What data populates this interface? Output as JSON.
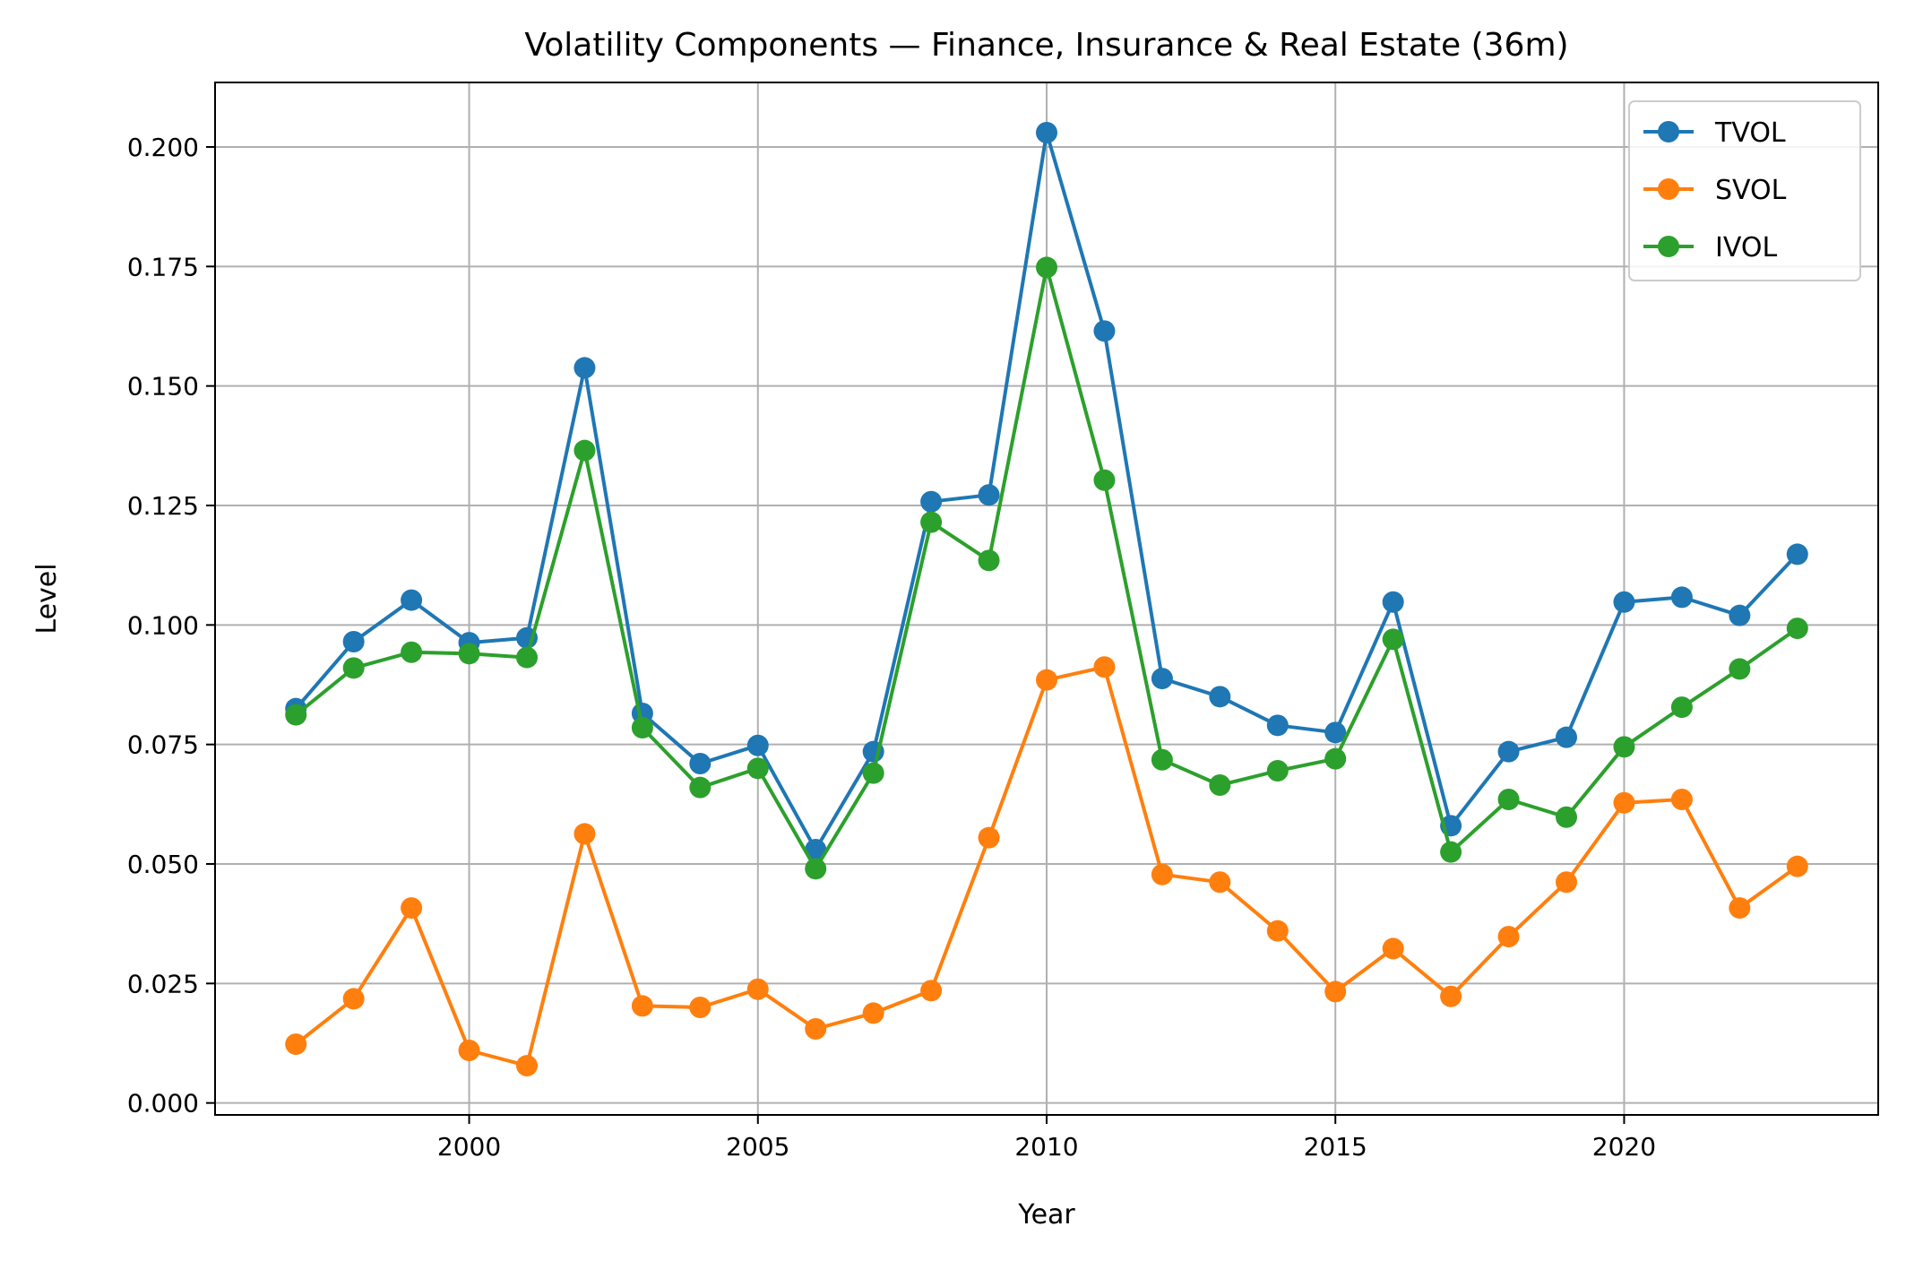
{
  "chart_data": {
    "type": "line",
    "title": "Volatility Components — Finance, Insurance & Real Estate (36m)",
    "xlabel": "Year",
    "ylabel": "Level",
    "xlim": [
      1995.6,
      2024.4
    ],
    "ylim": [
      -0.0025,
      0.2135
    ],
    "xticks": [
      2000,
      2005,
      2010,
      2015,
      2020
    ],
    "yticks": [
      0.0,
      0.025,
      0.05,
      0.075,
      0.1,
      0.125,
      0.15,
      0.175,
      0.2
    ],
    "ytick_labels": [
      "0.000",
      "0.025",
      "0.050",
      "0.075",
      "0.100",
      "0.125",
      "0.150",
      "0.175",
      "0.200"
    ],
    "grid": true,
    "legend_position": "top-right",
    "x": [
      1997,
      1998,
      1999,
      2000,
      2001,
      2002,
      2003,
      2004,
      2005,
      2006,
      2007,
      2008,
      2009,
      2010,
      2011,
      2012,
      2013,
      2014,
      2015,
      2016,
      2017,
      2018,
      2019,
      2020,
      2021,
      2022,
      2023
    ],
    "series": [
      {
        "name": "TVOL",
        "color": "#1f77b4",
        "values": [
          0.0825,
          0.0965,
          0.1052,
          0.0963,
          0.0973,
          0.1538,
          0.0815,
          0.071,
          0.0748,
          0.053,
          0.0735,
          0.1258,
          0.1272,
          0.203,
          0.1615,
          0.0888,
          0.085,
          0.079,
          0.0775,
          0.1048,
          0.058,
          0.0735,
          0.0765,
          0.1048,
          0.1058,
          0.102,
          0.1148
        ]
      },
      {
        "name": "SVOL",
        "color": "#ff7f0e",
        "values": [
          0.0123,
          0.0218,
          0.0408,
          0.011,
          0.0078,
          0.0563,
          0.0203,
          0.02,
          0.0238,
          0.0155,
          0.0188,
          0.0235,
          0.0555,
          0.0885,
          0.0912,
          0.0478,
          0.0462,
          0.036,
          0.0233,
          0.0323,
          0.0223,
          0.0348,
          0.0462,
          0.0628,
          0.0635,
          0.0408,
          0.0495
        ]
      },
      {
        "name": "IVOL",
        "color": "#2ca02c",
        "values": [
          0.0812,
          0.091,
          0.0943,
          0.094,
          0.0932,
          0.1365,
          0.0785,
          0.066,
          0.07,
          0.049,
          0.069,
          0.1215,
          0.1135,
          0.1748,
          0.1303,
          0.0718,
          0.0665,
          0.0695,
          0.072,
          0.097,
          0.0525,
          0.0635,
          0.0598,
          0.0745,
          0.0828,
          0.0908,
          0.0993
        ]
      }
    ]
  }
}
